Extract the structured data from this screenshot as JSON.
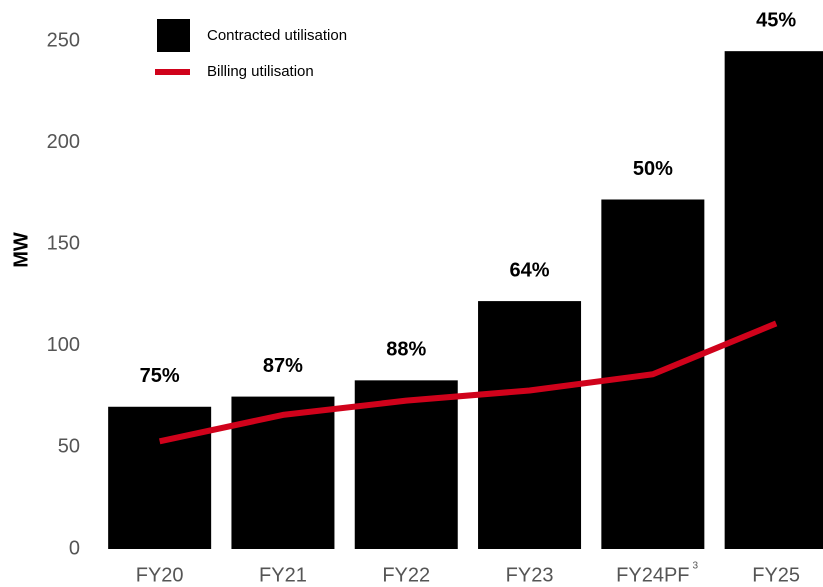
{
  "chart_data": {
    "type": "bar",
    "categories": [
      "FY20",
      "FY21",
      "FY22",
      "FY23",
      "FY24PF",
      "FY25"
    ],
    "category_notes": [
      null,
      null,
      null,
      null,
      "3",
      null
    ],
    "series": [
      {
        "name": "Contracted utilisation",
        "color": "#000000",
        "type": "bar",
        "values": [
          70,
          75,
          83,
          122,
          172,
          245
        ]
      },
      {
        "name": "Billing utilisation",
        "color": "#d0021b",
        "type": "line",
        "values": [
          53,
          66,
          73,
          78,
          86,
          111
        ]
      }
    ],
    "annotations": [
      "75%",
      "87%",
      "88%",
      "64%",
      "50%",
      "45%"
    ],
    "ylabel": "MW",
    "ylim": [
      0,
      250
    ],
    "yticks": [
      0,
      50,
      100,
      150,
      200,
      250
    ],
    "grid": false,
    "legend": "top-left"
  }
}
